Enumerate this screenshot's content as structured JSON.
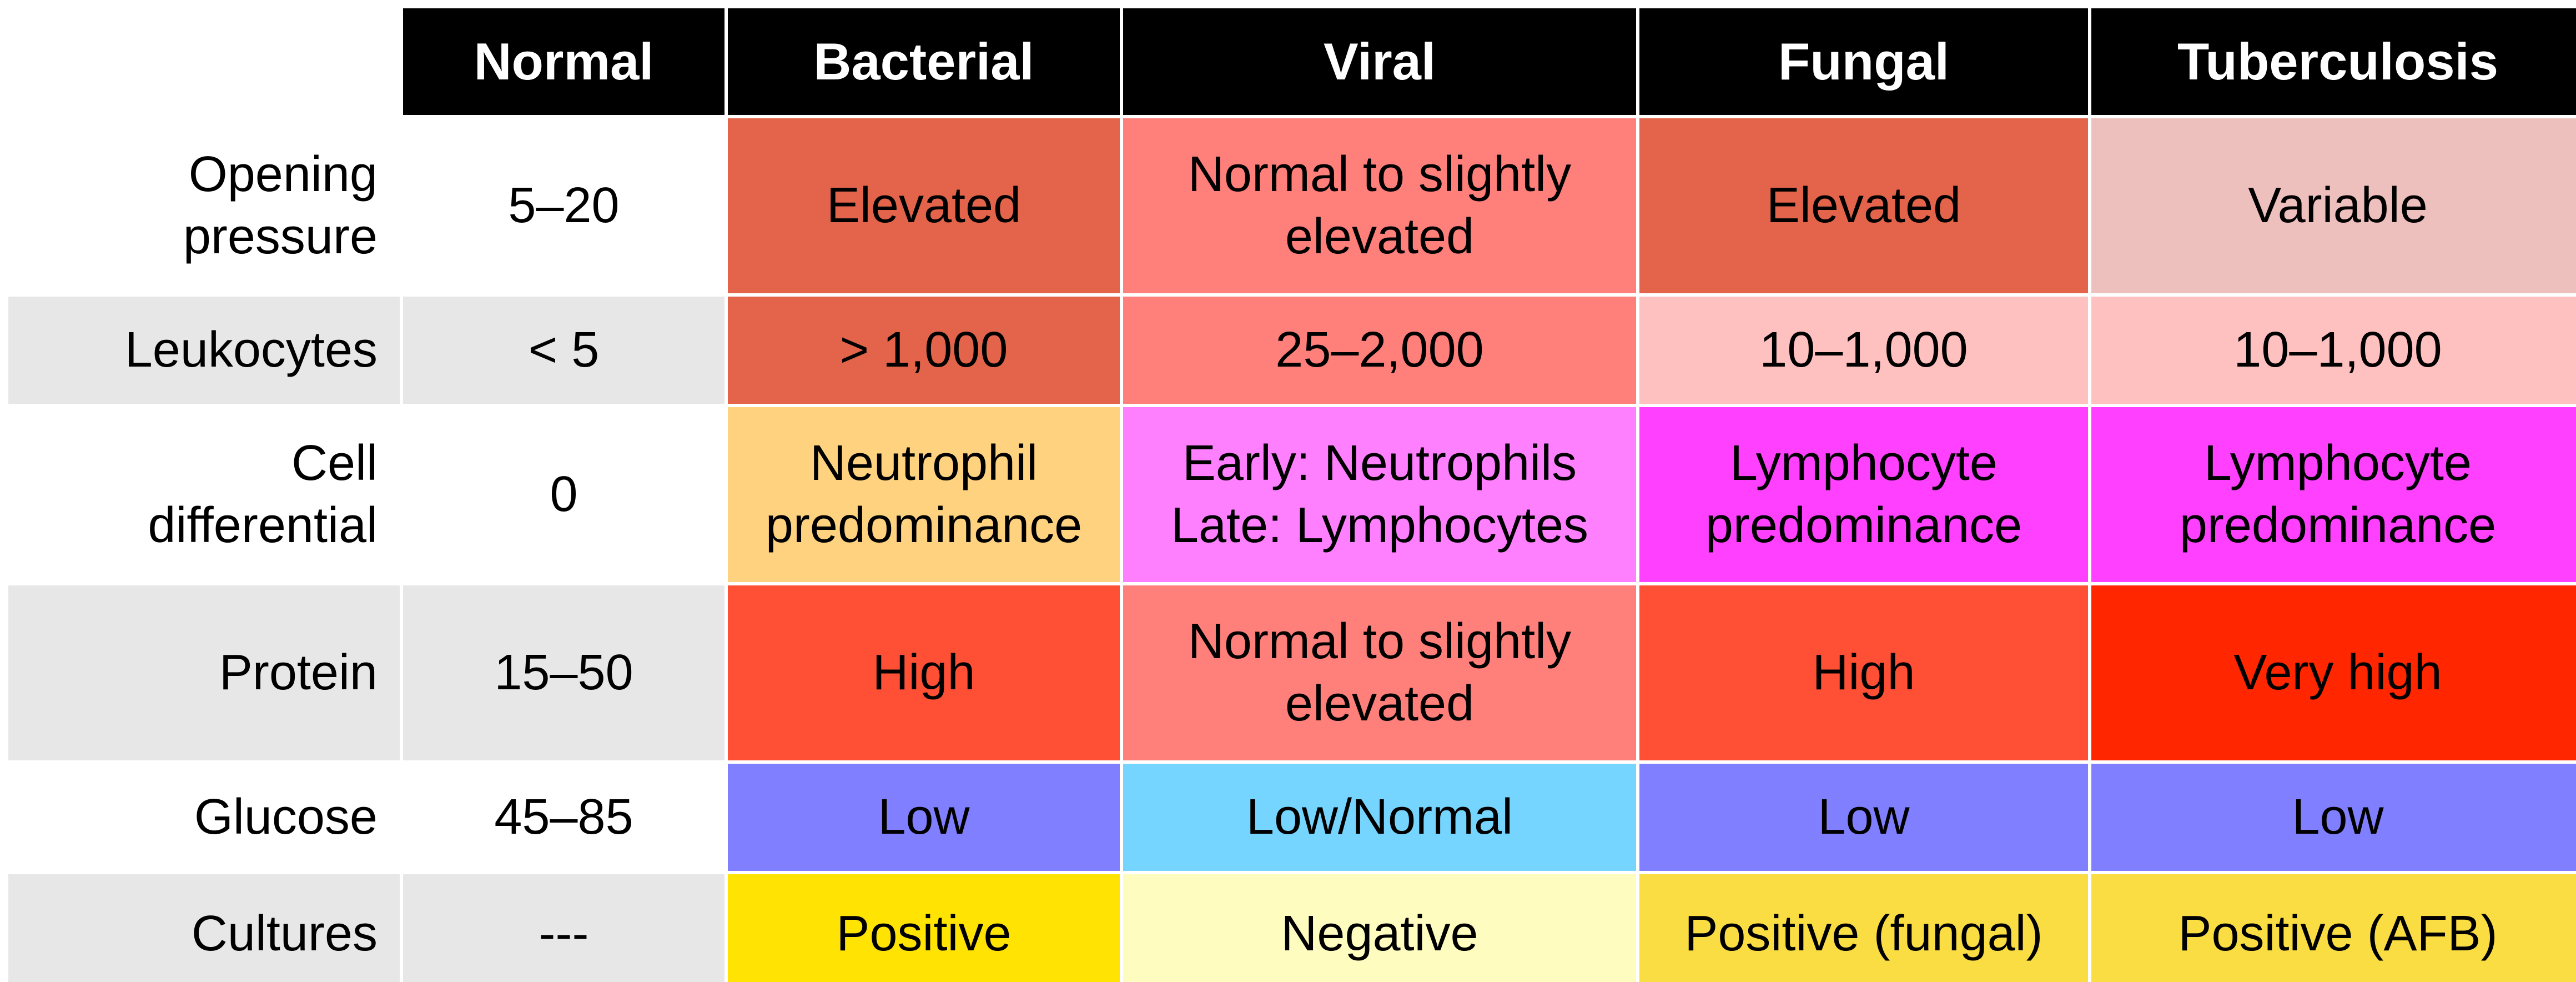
{
  "headers": [
    "Normal",
    "Bacterial",
    "Viral",
    "Fungal",
    "Tuberculosis"
  ],
  "rows": [
    {
      "label": "Opening\npressure",
      "shade": "white",
      "normal": "5–20",
      "cells": [
        {
          "text": "Elevated",
          "color": "#E3644B"
        },
        {
          "text": "Normal to slightly\nelevated",
          "color": "#FF7F7A"
        },
        {
          "text": "Elevated",
          "color": "#E3644B"
        },
        {
          "text": "Variable",
          "color": "#EEC0BD"
        }
      ]
    },
    {
      "label": "Leukocytes",
      "shade": "gray",
      "normal": "< 5",
      "cells": [
        {
          "text": "> 1,000",
          "color": "#E3644B"
        },
        {
          "text": "25–2,000",
          "color": "#FF7F7A"
        },
        {
          "text": "10–1,000",
          "color": "#FFC0C0"
        },
        {
          "text": "10–1,000",
          "color": "#FFC0C0"
        }
      ]
    },
    {
      "label": "Cell\ndifferential",
      "shade": "white",
      "normal": "0",
      "cells": [
        {
          "text": "Neutrophil\npredominance",
          "color": "#FFD27F"
        },
        {
          "text": "Early: Neutrophils\nLate: Lymphocytes",
          "color": "#FF80FF"
        },
        {
          "text": "Lymphocyte\npredominance",
          "color": "#FF40FF"
        },
        {
          "text": "Lymphocyte\npredominance",
          "color": "#FF40FF"
        }
      ]
    },
    {
      "label": "Protein",
      "shade": "gray",
      "normal": "15–50",
      "cells": [
        {
          "text": "High",
          "color": "#FF5035"
        },
        {
          "text": "Normal to slightly\nelevated",
          "color": "#FF7F7A"
        },
        {
          "text": "High",
          "color": "#FF5035"
        },
        {
          "text": "Very high",
          "color": "#FF2600"
        }
      ]
    },
    {
      "label": "Glucose",
      "shade": "white",
      "normal": "45–85",
      "cells": [
        {
          "text": "Low",
          "color": "#7F7FFF"
        },
        {
          "text": "Low/Normal",
          "color": "#75D5FF"
        },
        {
          "text": "Low",
          "color": "#7F7FFF"
        },
        {
          "text": "Low",
          "color": "#7F7FFF"
        }
      ]
    },
    {
      "label": "Cultures",
      "shade": "gray",
      "normal": "---",
      "cells": [
        {
          "text": "Positive",
          "color": "#FFE302"
        },
        {
          "text": "Negative",
          "color": "#FFFCBF"
        },
        {
          "text": "Positive (fungal)",
          "color": "#F9DD42"
        },
        {
          "text": "Positive (AFB)",
          "color": "#F9DD42"
        }
      ]
    }
  ]
}
